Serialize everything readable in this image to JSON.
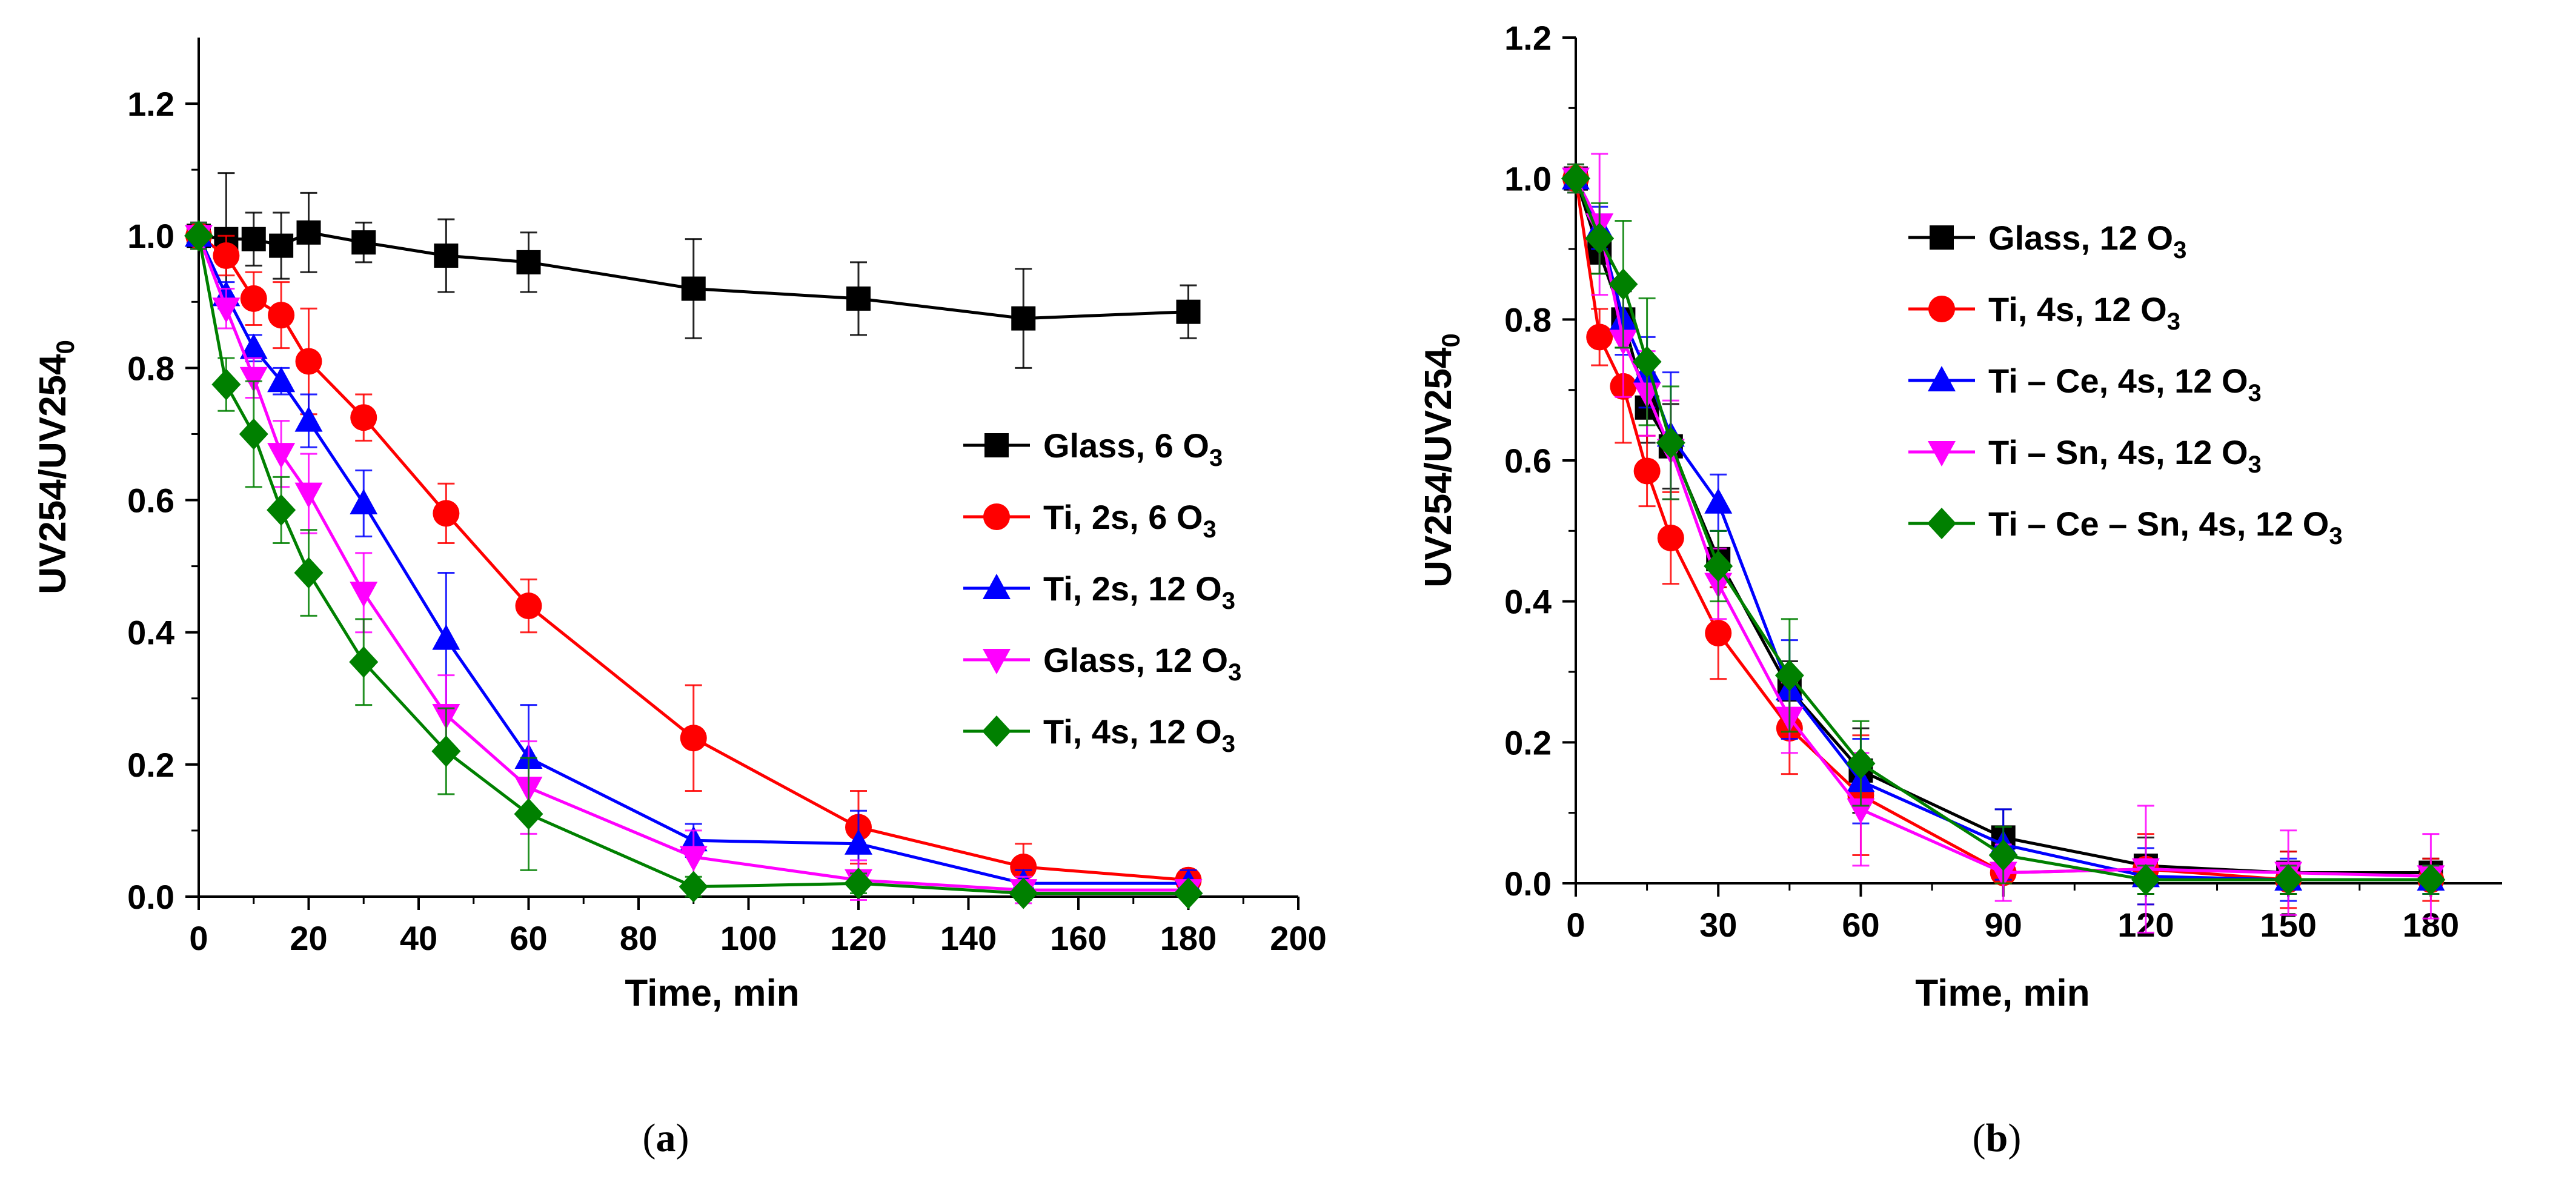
{
  "chart_data": [
    {
      "type": "line",
      "panel_label": "a",
      "xlabel": "Time, min",
      "ylabel": "UV254/UV254",
      "ylabel_sub": "0",
      "xlim": [
        0,
        200
      ],
      "ylim": [
        0,
        1.3
      ],
      "xticks": [
        0,
        20,
        40,
        60,
        80,
        100,
        120,
        140,
        160,
        180,
        200
      ],
      "yticks": [
        0.0,
        0.2,
        0.4,
        0.6,
        0.8,
        1.0,
        1.2
      ],
      "legend_position": "center-right",
      "series": [
        {
          "name": "Glass, 6 O",
          "sub": "3",
          "color": "#000000",
          "marker": "square",
          "x": [
            0,
            5,
            10,
            15,
            20,
            30,
            45,
            60,
            90,
            120,
            150,
            180
          ],
          "y": [
            1.0,
            0.995,
            0.995,
            0.985,
            1.005,
            0.99,
            0.97,
            0.96,
            0.92,
            0.905,
            0.875,
            0.885
          ],
          "err": [
            0.02,
            0.1,
            0.04,
            0.05,
            0.06,
            0.03,
            0.055,
            0.045,
            0.075,
            0.055,
            0.075,
            0.04
          ]
        },
        {
          "name": "Ti, 2s, 6 O",
          "sub": "3",
          "color": "#ff0000",
          "marker": "circle",
          "x": [
            0,
            5,
            10,
            15,
            20,
            30,
            45,
            60,
            90,
            120,
            150,
            180
          ],
          "y": [
            1.0,
            0.97,
            0.905,
            0.88,
            0.81,
            0.725,
            0.58,
            0.44,
            0.24,
            0.105,
            0.045,
            0.025
          ],
          "err": [
            0.02,
            0.03,
            0.04,
            0.05,
            0.08,
            0.035,
            0.045,
            0.04,
            0.08,
            0.055,
            0.035,
            0.015
          ]
        },
        {
          "name": "Ti, 2s, 12 O",
          "sub": "3",
          "color": "#0000ff",
          "marker": "triangle-up",
          "x": [
            0,
            5,
            10,
            15,
            20,
            30,
            45,
            60,
            90,
            120,
            150,
            180
          ],
          "y": [
            1.0,
            0.91,
            0.83,
            0.78,
            0.72,
            0.595,
            0.39,
            0.21,
            0.085,
            0.08,
            0.02,
            0.02
          ],
          "err": [
            0.02,
            0.02,
            0.02,
            0.02,
            0.04,
            0.05,
            0.1,
            0.08,
            0.025,
            0.05,
            0.02,
            0.02
          ]
        },
        {
          "name": "Glass, 12 O",
          "sub": "3",
          "color": "#ff00ff",
          "marker": "triangle-down",
          "x": [
            0,
            5,
            10,
            15,
            20,
            30,
            45,
            60,
            90,
            120,
            150,
            180
          ],
          "y": [
            1.0,
            0.89,
            0.785,
            0.67,
            0.61,
            0.46,
            0.275,
            0.165,
            0.06,
            0.025,
            0.01,
            0.01
          ],
          "err": [
            0.02,
            0.03,
            0.03,
            0.05,
            0.06,
            0.06,
            0.06,
            0.07,
            0.04,
            0.03,
            0.02,
            0.01
          ]
        },
        {
          "name": "Ti, 4s, 12 O",
          "sub": "3",
          "color": "#008000",
          "marker": "diamond",
          "x": [
            0,
            5,
            10,
            15,
            20,
            30,
            45,
            60,
            90,
            120,
            150,
            180
          ],
          "y": [
            1.0,
            0.775,
            0.7,
            0.585,
            0.49,
            0.355,
            0.22,
            0.125,
            0.015,
            0.02,
            0.005,
            0.005
          ],
          "err": [
            0.02,
            0.04,
            0.08,
            0.05,
            0.065,
            0.065,
            0.065,
            0.085,
            0.015,
            0.015,
            0.01,
            0.005
          ]
        }
      ]
    },
    {
      "type": "line",
      "panel_label": "b",
      "xlabel": "Time, min",
      "ylabel": "UV254/UV254",
      "ylabel_sub": "0",
      "xlim": [
        0,
        195
      ],
      "ylim": [
        0,
        1.2
      ],
      "xticks": [
        0,
        30,
        60,
        90,
        120,
        150,
        180
      ],
      "yticks": [
        0.0,
        0.2,
        0.4,
        0.6,
        0.8,
        1.0,
        1.2
      ],
      "legend_position": "top-right",
      "series": [
        {
          "name": "Glass, 12 O",
          "sub": "3",
          "color": "#000000",
          "marker": "square",
          "x": [
            0,
            5,
            10,
            15,
            20,
            30,
            45,
            60,
            90,
            120,
            150,
            180
          ],
          "y": [
            1.0,
            0.895,
            0.8,
            0.675,
            0.62,
            0.46,
            0.275,
            0.16,
            0.065,
            0.025,
            0.015,
            0.015
          ],
          "err": [
            0.02,
            0.03,
            0.04,
            0.05,
            0.06,
            0.04,
            0.04,
            0.06,
            0.04,
            0.04,
            0.03,
            0.02
          ]
        },
        {
          "name": "Ti, 4s, 12 O",
          "sub": "3",
          "color": "#ff0000",
          "marker": "circle",
          "x": [
            0,
            5,
            10,
            15,
            20,
            30,
            45,
            60,
            90,
            120,
            150,
            180
          ],
          "y": [
            1.0,
            0.775,
            0.705,
            0.585,
            0.49,
            0.355,
            0.22,
            0.125,
            0.015,
            0.02,
            0.005,
            0.005
          ],
          "err": [
            0.02,
            0.04,
            0.08,
            0.05,
            0.065,
            0.065,
            0.065,
            0.085,
            0.015,
            0.05,
            0.04,
            0.03
          ]
        },
        {
          "name": "Ti – Ce, 4s, 12 O",
          "sub": "3",
          "color": "#0000ff",
          "marker": "triangle-up",
          "x": [
            0,
            5,
            10,
            15,
            20,
            30,
            45,
            60,
            90,
            120,
            150,
            180
          ],
          "y": [
            1.0,
            0.93,
            0.8,
            0.725,
            0.635,
            0.54,
            0.275,
            0.145,
            0.055,
            0.01,
            0.005,
            0.005
          ],
          "err": [
            0.02,
            0.03,
            0.05,
            0.05,
            0.09,
            0.04,
            0.07,
            0.06,
            0.05,
            0.04,
            0.03,
            0.02
          ]
        },
        {
          "name": "Ti – Sn, 4s, 12 O",
          "sub": "3",
          "color": "#ff00ff",
          "marker": "triangle-down",
          "x": [
            0,
            5,
            10,
            15,
            20,
            30,
            45,
            60,
            90,
            120,
            150,
            180
          ],
          "y": [
            1.0,
            0.935,
            0.77,
            0.695,
            0.615,
            0.425,
            0.235,
            0.105,
            0.015,
            0.02,
            0.015,
            0.01
          ],
          "err": [
            0.02,
            0.1,
            0.08,
            0.06,
            0.07,
            0.05,
            0.05,
            0.08,
            0.04,
            0.09,
            0.06,
            0.06
          ]
        },
        {
          "name": "Ti – Ce – Sn, 4s, 12 O",
          "sub": "3",
          "color": "#008000",
          "marker": "diamond",
          "x": [
            0,
            5,
            10,
            15,
            20,
            30,
            45,
            60,
            90,
            120,
            150,
            180
          ],
          "y": [
            1.0,
            0.915,
            0.85,
            0.74,
            0.625,
            0.45,
            0.295,
            0.17,
            0.04,
            0.005,
            0.005,
            0.005
          ],
          "err": [
            0.02,
            0.05,
            0.09,
            0.09,
            0.08,
            0.05,
            0.08,
            0.06,
            0.04,
            0.02,
            0.02,
            0.02
          ]
        }
      ]
    }
  ]
}
